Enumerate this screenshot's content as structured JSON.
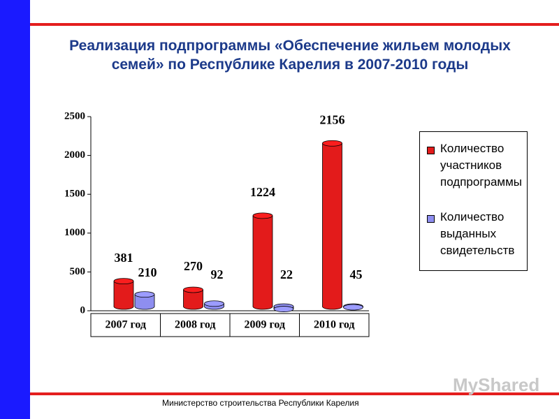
{
  "chart_data": {
    "type": "bar3d",
    "title": "Реализация подпрограммы «Обеспечение жильем молодых семей» по Республике Карелия в 2007-2010 годы",
    "categories": [
      "2007 год",
      "2008 год",
      "2009 год",
      "2010 год"
    ],
    "series": [
      {
        "name": "Количество участников подпрограммы",
        "color": "#e31b1b",
        "values": [
          381,
          270,
          1224,
          2156
        ]
      },
      {
        "name": "Количество выданных свидетельств",
        "color": "#8e8ef0",
        "values": [
          210,
          92,
          22,
          45
        ]
      }
    ],
    "ylim": [
      0,
      2500
    ],
    "yticks": [
      0,
      500,
      1000,
      1500,
      2000,
      2500
    ],
    "legend": "right"
  },
  "footer": "Министерство строительства  Республики Карелия",
  "watermark": "MyShared"
}
